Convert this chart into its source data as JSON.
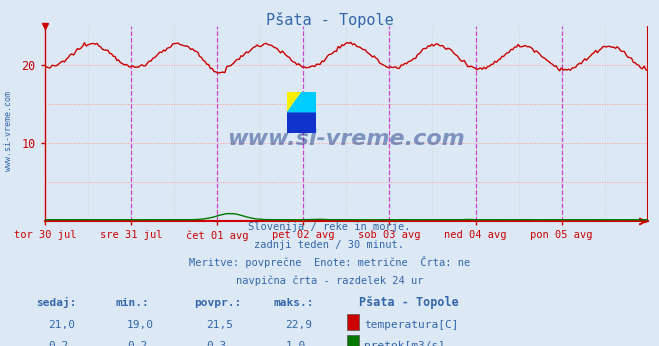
{
  "title": "Pšata - Topole",
  "bg_color": "#dce9f5",
  "plot_bg_color": "#dce9f5",
  "grid_h_color": "#ff9999",
  "grid_v_color": "#ff99ff",
  "grid_dot_color": "#cccccc",
  "temp_color": "#cc0000",
  "flow_color": "#007700",
  "axis_color": "#cc0000",
  "vline_color": "#cc44cc",
  "text_color": "#3366aa",
  "n_points": 336,
  "n_days": 7,
  "day_labels": [
    "tor 30 jul",
    "sre 31 jul",
    "čet 01 avg",
    "pet 02 avg",
    "sob 03 avg",
    "ned 04 avg",
    "pon 05 avg"
  ],
  "temp_min": 19.0,
  "temp_max": 22.9,
  "temp_avg": 21.5,
  "temp_now": 21.0,
  "flow_min": 0.2,
  "flow_max": 1.0,
  "flow_avg": 0.3,
  "flow_now": 0.2,
  "ylim": [
    0,
    25
  ],
  "ytick_positions": [
    10,
    20
  ],
  "ytick_labels": [
    "10",
    "20"
  ],
  "footer_line1": "Slovenija / reke in morje.",
  "footer_line2": "zadnji teden / 30 minut.",
  "footer_line3": "Meritve: povprečne  Enote: metrične  Črta: ne",
  "footer_line4": "navpična črta - razdelek 24 ur",
  "legend_title": "Pšata - Topole",
  "legend_temp": "temperatura[C]",
  "legend_flow": "pretok[m3/s]",
  "col_headers": [
    "sedaj:",
    "min.:",
    "povpr.:",
    "maks.:"
  ],
  "watermark": "www.si-vreme.com",
  "watermark_color": "#0a2a7a",
  "logo_colors": [
    "#ffff00",
    "#00ccff",
    "#0033cc"
  ]
}
